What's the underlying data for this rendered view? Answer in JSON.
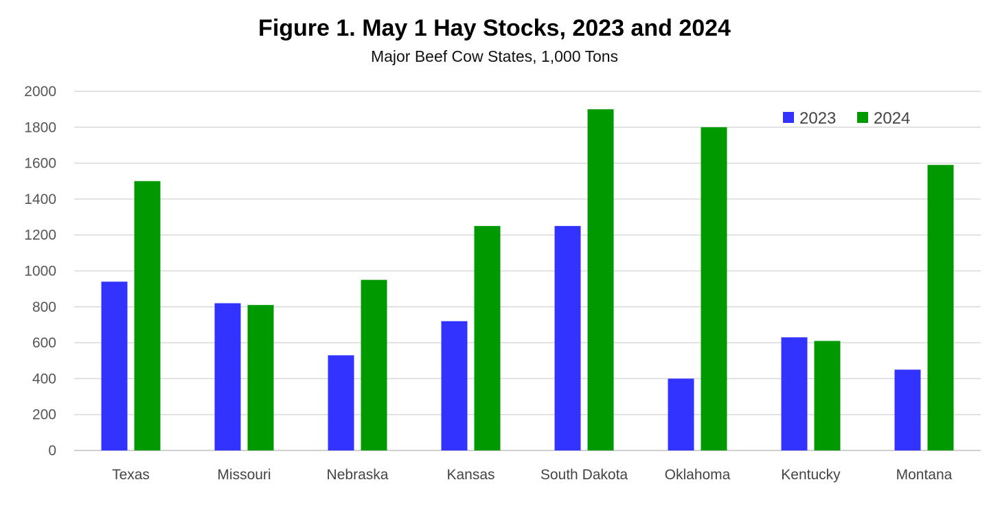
{
  "chart_data": {
    "type": "bar",
    "title": "Figure 1.  May 1 Hay Stocks, 2023 and 2024",
    "subtitle": "Major Beef Cow States, 1,000 Tons",
    "xlabel": "",
    "ylabel": "",
    "ylim": [
      0,
      2000
    ],
    "yticks": [
      "0",
      "200",
      "400",
      "600",
      "800",
      "1000",
      "1200",
      "1400",
      "1600",
      "1800",
      "2000"
    ],
    "grid": true,
    "legend_position": "top-right",
    "categories": [
      "Texas",
      "Missouri",
      "Nebraska",
      "Kansas",
      "South Dakota",
      "Oklahoma",
      "Kentucky",
      "Montana"
    ],
    "series": [
      {
        "name": "2023",
        "color": "#3333ff",
        "values": [
          940,
          820,
          530,
          720,
          1250,
          400,
          630,
          450
        ]
      },
      {
        "name": "2024",
        "color": "#009900",
        "values": [
          1500,
          810,
          950,
          1250,
          1900,
          1800,
          610,
          1590
        ]
      }
    ]
  }
}
